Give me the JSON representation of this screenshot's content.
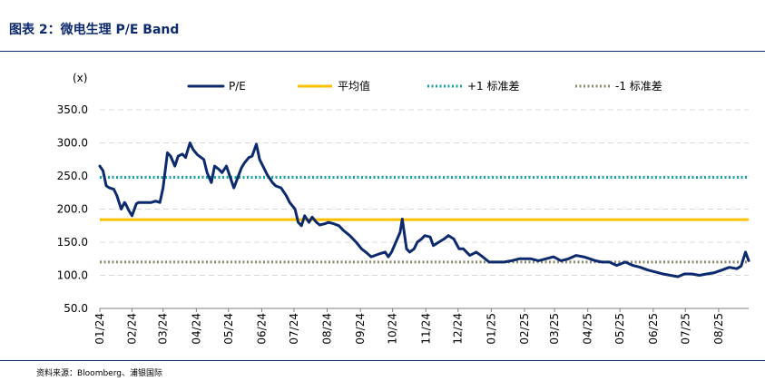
{
  "title": "图表 2：微电生理 P/E Band",
  "source": "资料来源：Bloomberg、浦银国际",
  "colors": {
    "title": "#0d2a6e",
    "pe": "#0d2a6e",
    "mean": "#ffc000",
    "plus1": "#16a3a0",
    "minus1": "#8c8a6e",
    "grid": "#d9d9d9",
    "axis": "#7f7f7f"
  },
  "chart_data": {
    "type": "line",
    "ylabel": "(x)",
    "ylim": [
      50,
      350
    ],
    "yticks": [
      "350.0",
      "300.0",
      "250.0",
      "200.0",
      "150.0",
      "100.0",
      "50.0"
    ],
    "ytick_values": [
      350,
      300,
      250,
      200,
      150,
      100,
      50
    ],
    "xticks": [
      "01/24",
      "02/24",
      "03/24",
      "04/24",
      "05/24",
      "06/24",
      "07/24",
      "08/24",
      "09/24",
      "10/24",
      "11/24",
      "12/24",
      "01/25",
      "02/25",
      "03/25",
      "04/25",
      "05/25",
      "06/25",
      "07/25",
      "08/25"
    ],
    "x_range": [
      "2024-01-02",
      "2025-08-29"
    ],
    "grid": "horizontal dashed",
    "legend_position": "top",
    "series": [
      {
        "name": "P/E",
        "style": "solid",
        "x": [
          "2024-01-02",
          "2024-01-05",
          "2024-01-08",
          "2024-01-11",
          "2024-01-15",
          "2024-01-18",
          "2024-01-22",
          "2024-01-25",
          "2024-01-26",
          "2024-01-29",
          "2024-02-01",
          "2024-02-05",
          "2024-02-07",
          "2024-02-19",
          "2024-02-23",
          "2024-02-27",
          "2024-03-01",
          "2024-03-05",
          "2024-03-08",
          "2024-03-12",
          "2024-03-15",
          "2024-03-19",
          "2024-03-22",
          "2024-03-26",
          "2024-03-29",
          "2024-04-02",
          "2024-04-08",
          "2024-04-11",
          "2024-04-15",
          "2024-04-18",
          "2024-04-22",
          "2024-04-25",
          "2024-04-29",
          "2024-05-06",
          "2024-05-09",
          "2024-05-13",
          "2024-05-16",
          "2024-05-20",
          "2024-05-23",
          "2024-05-27",
          "2024-05-30",
          "2024-06-03",
          "2024-06-06",
          "2024-06-11",
          "2024-06-14",
          "2024-06-19",
          "2024-06-24",
          "2024-06-27",
          "2024-07-02",
          "2024-07-05",
          "2024-07-08",
          "2024-07-11",
          "2024-07-15",
          "2024-07-18",
          "2024-07-22",
          "2024-07-25",
          "2024-07-30",
          "2024-08-02",
          "2024-08-07",
          "2024-08-12",
          "2024-08-16",
          "2024-08-22",
          "2024-08-28",
          "2024-09-02",
          "2024-09-06",
          "2024-09-11",
          "2024-09-18",
          "2024-09-24",
          "2024-09-27",
          "2024-09-30",
          "2024-10-08",
          "2024-10-10",
          "2024-10-14",
          "2024-10-17",
          "2024-10-21",
          "2024-10-24",
          "2024-10-28",
          "2024-10-31",
          "2024-11-05",
          "2024-11-08",
          "2024-11-13",
          "2024-11-18",
          "2024-11-22",
          "2024-11-27",
          "2024-12-02",
          "2024-12-06",
          "2024-12-12",
          "2024-12-18",
          "2024-12-24",
          "2024-12-30",
          "2025-01-06",
          "2025-01-13",
          "2025-01-20",
          "2025-01-27",
          "2025-02-07",
          "2025-02-14",
          "2025-02-21",
          "2025-02-28",
          "2025-03-07",
          "2025-03-14",
          "2025-03-21",
          "2025-03-28",
          "2025-04-03",
          "2025-04-08",
          "2025-04-14",
          "2025-04-21",
          "2025-04-28",
          "2025-05-06",
          "2025-05-13",
          "2025-05-20",
          "2025-05-27",
          "2025-06-03",
          "2025-06-10",
          "2025-06-17",
          "2025-06-24",
          "2025-06-30",
          "2025-07-07",
          "2025-07-14",
          "2025-07-21",
          "2025-07-28",
          "2025-08-04",
          "2025-08-11",
          "2025-08-18",
          "2025-08-22",
          "2025-08-26",
          "2025-08-29"
        ],
        "values": [
          265,
          258,
          235,
          232,
          230,
          220,
          200,
          210,
          208,
          198,
          190,
          208,
          210,
          210,
          212,
          210,
          232,
          285,
          280,
          265,
          280,
          283,
          278,
          300,
          290,
          282,
          275,
          255,
          240,
          265,
          260,
          255,
          265,
          232,
          245,
          262,
          270,
          278,
          280,
          298,
          275,
          262,
          252,
          240,
          235,
          232,
          220,
          210,
          200,
          180,
          175,
          190,
          180,
          188,
          180,
          176,
          178,
          180,
          178,
          175,
          168,
          160,
          150,
          140,
          135,
          128,
          132,
          135,
          128,
          135,
          165,
          185,
          140,
          135,
          140,
          150,
          155,
          160,
          158,
          145,
          150,
          155,
          160,
          155,
          140,
          140,
          130,
          135,
          128,
          120,
          120,
          120,
          122,
          125,
          125,
          122,
          125,
          128,
          122,
          125,
          130,
          128,
          125,
          122,
          120,
          120,
          115,
          120,
          115,
          112,
          108,
          105,
          102,
          100,
          98,
          102,
          102,
          100,
          102,
          104,
          108,
          112,
          110,
          114,
          135,
          122
        ]
      },
      {
        "name": "平均值",
        "style": "solid",
        "constant": 184
      },
      {
        "name": "+1 标准差",
        "style": "dotted",
        "constant": 248
      },
      {
        "name": "-1 标准差",
        "style": "dotted",
        "constant": 120
      }
    ]
  }
}
